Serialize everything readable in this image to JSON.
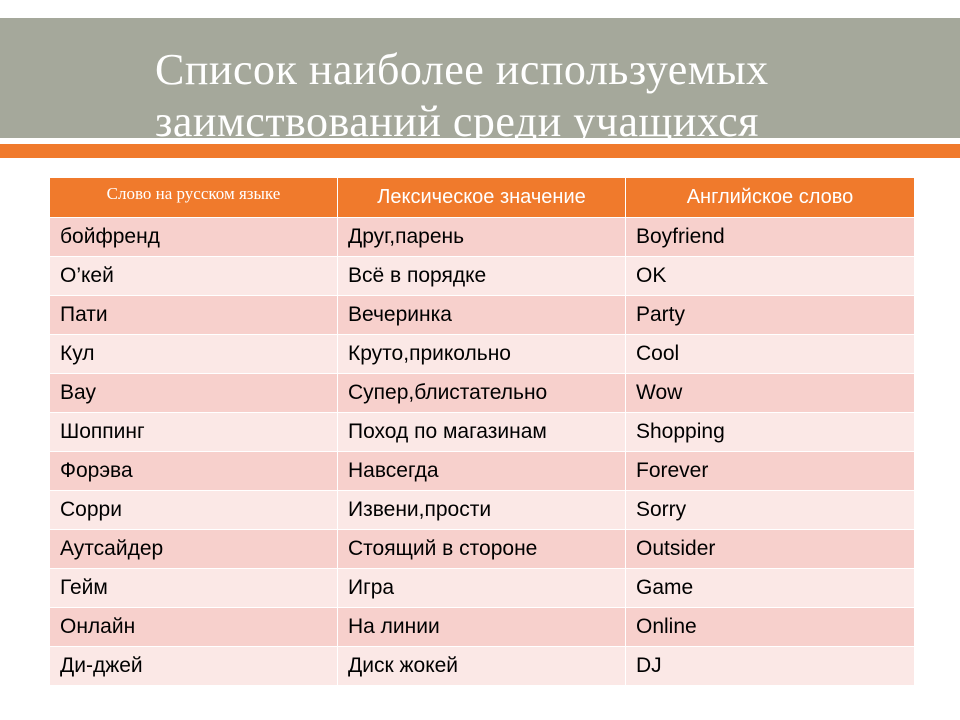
{
  "slide": {
    "title": "Список наиболее используемых\nзаимствований среди учащихся"
  },
  "table": {
    "headers": [
      "Слово на русском языке",
      "Лексическое значение",
      "Английское слово"
    ],
    "rows": [
      [
        "бойфренд",
        "Друг,парень",
        "Boyfriend"
      ],
      [
        "О’кей",
        "Всё в порядке",
        "OK"
      ],
      [
        "Пати",
        "Вечеринка",
        "Party"
      ],
      [
        "Кул",
        "Круто,прикольно",
        "Cool"
      ],
      [
        "Вау",
        "Супер,блистательно",
        "Wow"
      ],
      [
        "Шоппинг",
        "Поход по магазинам",
        "Shopping"
      ],
      [
        "Форэва",
        "Навсегда",
        "Forever"
      ],
      [
        "Сорри",
        "Извени,прости",
        "Sorry"
      ],
      [
        "Аутсайдер",
        "Стоящий в стороне",
        "Outsider"
      ],
      [
        "Гейм",
        "Игра",
        "Game"
      ],
      [
        "Онлайн",
        "На линии",
        "Online"
      ],
      [
        "Ди-джей",
        "Диск жокей",
        "DJ"
      ]
    ]
  },
  "colors": {
    "title_band": "#a5a89b",
    "accent": "#f07a2c",
    "row_odd": "#f7d0cc",
    "row_even": "#fbe8e6"
  }
}
